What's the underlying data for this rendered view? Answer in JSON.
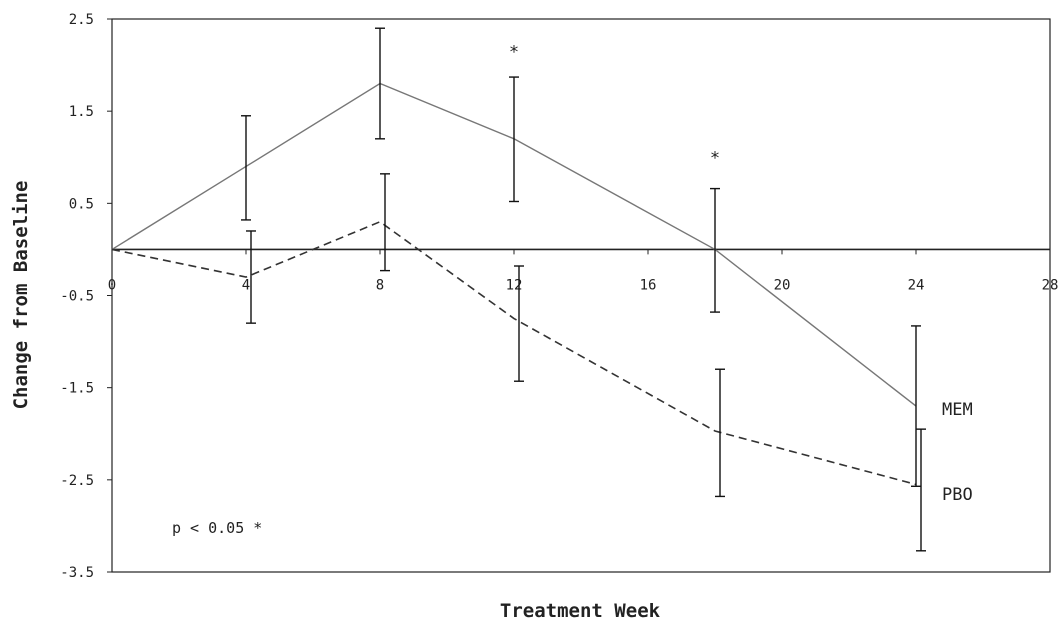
{
  "chart_data": {
    "type": "line",
    "xlabel": "Treatment Week",
    "ylabel": "Change from Baseline",
    "xlim": [
      0,
      28
    ],
    "ylim": [
      -3.5,
      2.5
    ],
    "x_ticks": [
      "0",
      "4",
      "8",
      "12",
      "16",
      "20",
      "24",
      "28"
    ],
    "y_ticks": [
      "2.5",
      "1.5",
      "0.5",
      "-0.5",
      "-1.5",
      "-2.5",
      "-3.5"
    ],
    "grid": false,
    "series": [
      {
        "name": "MEM",
        "line_style": "solid",
        "color": "#777777",
        "points": [
          {
            "x": 0,
            "y": 0,
            "err_low": null,
            "err_high": null
          },
          {
            "x": 4,
            "y": 0.9,
            "err_low": 0.32,
            "err_high": 1.45
          },
          {
            "x": 8,
            "y": 1.8,
            "err_low": 1.2,
            "err_high": 2.4
          },
          {
            "x": 12,
            "y": 1.2,
            "err_low": 0.52,
            "err_high": 1.87
          },
          {
            "x": 18,
            "y": 0.0,
            "err_low": -0.68,
            "err_high": 0.66
          },
          {
            "x": 24,
            "y": -1.7,
            "err_low": -2.57,
            "err_high": -0.83
          }
        ]
      },
      {
        "name": "PBO",
        "line_style": "dashed",
        "color": "#333333",
        "points": [
          {
            "x": 0,
            "y": 0,
            "err_low": null,
            "err_high": null
          },
          {
            "x": 4,
            "y": -0.3,
            "err_low": -0.8,
            "err_high": 0.2
          },
          {
            "x": 8,
            "y": 0.3,
            "err_low": -0.23,
            "err_high": 0.82
          },
          {
            "x": 12,
            "y": -0.75,
            "err_low": -1.43,
            "err_high": -0.18
          },
          {
            "x": 18,
            "y": -1.97,
            "err_low": -2.68,
            "err_high": -1.3
          },
          {
            "x": 24,
            "y": -2.55,
            "err_low": -3.27,
            "err_high": -1.95
          }
        ]
      }
    ],
    "significance_markers": [
      {
        "x": 12,
        "y": 2.15,
        "text": "*"
      },
      {
        "x": 18,
        "y": 1.0,
        "text": "*"
      }
    ],
    "note": "p < 0.05 *"
  }
}
